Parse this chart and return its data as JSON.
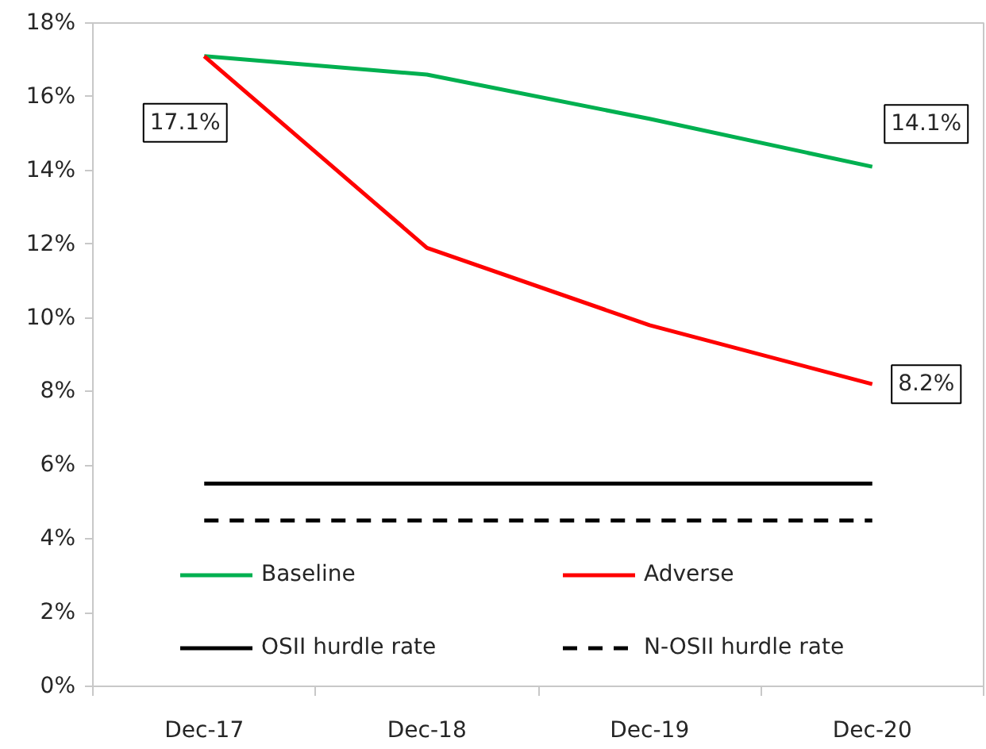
{
  "chart_data": {
    "type": "line",
    "categories": [
      "Dec-17",
      "Dec-18",
      "Dec-19",
      "Dec-20"
    ],
    "series": [
      {
        "name": "Baseline",
        "color": "#00b050",
        "values": [
          17.1,
          16.6,
          15.4,
          14.1
        ],
        "value_labels": [
          "17.1%",
          null,
          null,
          "14.1%"
        ]
      },
      {
        "name": "Adverse",
        "color": "#ff0000",
        "values": [
          17.1,
          11.9,
          9.8,
          8.2
        ],
        "value_labels": [
          null,
          null,
          null,
          "8.2%"
        ]
      },
      {
        "name": "OSII hurdle rate",
        "color": "#000000",
        "values": [
          5.5,
          5.5,
          5.5,
          5.5
        ]
      },
      {
        "name": "N-OSII hurdle rate",
        "color": "#000000",
        "values": [
          4.5,
          4.5,
          4.5,
          4.5
        ],
        "line_style": "dashed"
      }
    ],
    "ylim": [
      0,
      18
    ],
    "yticks": [
      {
        "value": 0,
        "label": "0%"
      },
      {
        "value": 2,
        "label": "2%"
      },
      {
        "value": 4,
        "label": "4%"
      },
      {
        "value": 6,
        "label": "6%"
      },
      {
        "value": 8,
        "label": "8%"
      },
      {
        "value": 10,
        "label": "10%"
      },
      {
        "value": 12,
        "label": "12%"
      },
      {
        "value": 14,
        "label": "14%"
      },
      {
        "value": 16,
        "label": "16%"
      },
      {
        "value": 18,
        "label": "18%"
      }
    ],
    "legend": "bottom",
    "grid": false
  }
}
